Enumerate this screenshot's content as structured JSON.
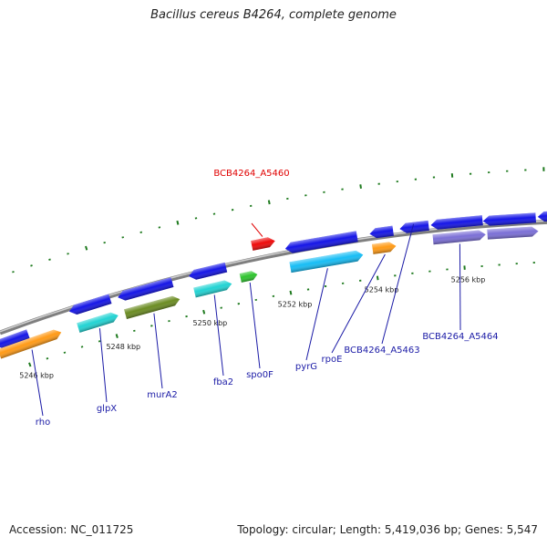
{
  "title": "Bacillus cereus B4264, complete genome",
  "footer": {
    "accession": "Accession: NC_011725",
    "summary": "Topology: circular; Length: 5,419,036 bp; Genes: 5,547"
  },
  "colors": {
    "backbone": "#7f7f7f",
    "tick": "#1e7a1e",
    "label_default": "#1a1aa6",
    "label_highlight": "#e00000",
    "leader_default": "#1a1aa6",
    "leader_highlight": "#e00000"
  },
  "ticks": [
    "5246 kbp",
    "5248 kbp",
    "5250 kbp",
    "5252 kbp",
    "5254 kbp",
    "5256 kbp"
  ],
  "genes": [
    {
      "id": "g0",
      "label": "",
      "color": "#1515e6"
    },
    {
      "id": "g1",
      "label": "rho",
      "color": "#ff9a16"
    },
    {
      "id": "g2",
      "label": "glpX",
      "color": "#22d3d3"
    },
    {
      "id": "g3",
      "label": "",
      "color": "#1515e6"
    },
    {
      "id": "g4",
      "label": "murA2",
      "color": "#6b8c22"
    },
    {
      "id": "g5",
      "label": "",
      "color": "#1515e6"
    },
    {
      "id": "g6",
      "label": "fba2",
      "color": "#22d3d3"
    },
    {
      "id": "g7",
      "label": "",
      "color": "#1515e6"
    },
    {
      "id": "g8",
      "label": "spo0F",
      "color": "#2ec42e"
    },
    {
      "id": "g9",
      "label": "BCB4264_A5460",
      "color": "#ee0b0b",
      "highlight": true
    },
    {
      "id": "g10",
      "label": "",
      "color": "#1515e6"
    },
    {
      "id": "g11",
      "label": "pyrG",
      "color": "#17bdf5"
    },
    {
      "id": "g12",
      "label": "",
      "color": "#1515e6"
    },
    {
      "id": "g13",
      "label": "rpoE",
      "color": "#ff9a16"
    },
    {
      "id": "g14",
      "label": "BCB4264_A5463",
      "color": "#1515e6"
    },
    {
      "id": "g15",
      "label": "",
      "color": "#1515e6"
    },
    {
      "id": "g16",
      "label": "BCB4264_A5464",
      "color": "#7b6fd6"
    },
    {
      "id": "g17",
      "label": "",
      "color": "#1515e6"
    },
    {
      "id": "g18",
      "label": "",
      "color": "#7b6fd6"
    },
    {
      "id": "g19",
      "label": "",
      "color": "#1515e6"
    }
  ]
}
